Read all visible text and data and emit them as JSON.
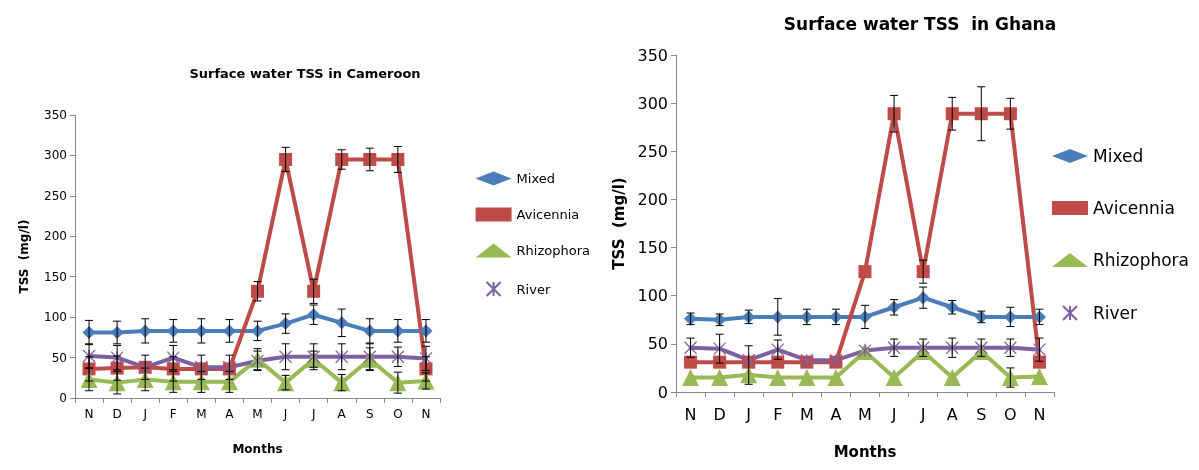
{
  "chart_data": [
    {
      "type": "line",
      "title": "Surface water TSS in Cameroon",
      "xlabel": "Months",
      "ylabel": "TSS  (mg/l)",
      "categories": [
        "N",
        "D",
        "J",
        "F",
        "M",
        "A",
        "M",
        "J",
        "J",
        "A",
        "S",
        "O",
        "N"
      ],
      "ylim": [
        0,
        350
      ],
      "yticks": [
        0,
        50,
        100,
        150,
        200,
        250,
        300,
        350
      ],
      "legend": "right",
      "grid": false,
      "line_style": "solid",
      "series": [
        {
          "name": "Mixed",
          "color": "#4a7ebb",
          "marker": "diamond",
          "values": [
            81,
            81,
            83,
            83,
            83,
            83,
            83,
            92,
            103,
            93,
            83,
            83,
            83
          ],
          "errors": [
            15,
            14,
            15,
            14,
            15,
            14,
            12,
            12,
            12,
            17,
            15,
            14,
            14
          ]
        },
        {
          "name": "Avicennia",
          "color": "#be4b48",
          "marker": "square",
          "values": [
            36,
            37,
            38,
            36,
            36,
            36,
            132,
            295,
            132,
            295,
            295,
            295,
            36
          ],
          "errors": [
            15,
            15,
            null,
            15,
            null,
            null,
            12,
            15,
            15,
            12,
            14,
            16,
            15
          ]
        },
        {
          "name": "Rhizophora",
          "color": "#98b954",
          "marker": "triangle",
          "values": [
            23,
            19,
            23,
            20,
            20,
            20,
            48,
            19,
            48,
            19,
            48,
            19,
            21
          ],
          "errors": [
            14,
            14,
            14,
            13,
            13,
            13,
            13,
            9,
            10,
            10,
            14,
            13,
            10
          ]
        },
        {
          "name": "River",
          "color": "#7d60a0",
          "marker": "cross",
          "values": [
            52,
            50,
            38,
            50,
            38,
            38,
            46,
            51,
            51,
            51,
            51,
            51,
            49
          ],
          "errors": [
            15,
            15,
            15,
            15,
            15,
            15,
            12,
            16,
            16,
            16,
            16,
            12,
            15
          ]
        }
      ]
    },
    {
      "type": "line",
      "title": "Surface water TSS  in Ghana",
      "xlabel": "Months",
      "ylabel": "TSS  (mg/l)",
      "categories": [
        "N",
        "D",
        "J",
        "F",
        "M",
        "A",
        "M",
        "J",
        "J",
        "A",
        "S",
        "O",
        "N"
      ],
      "ylim": [
        0,
        350
      ],
      "yticks": [
        0,
        50,
        100,
        150,
        200,
        250,
        300,
        350
      ],
      "legend": "right",
      "grid": false,
      "line_style": "solid",
      "series": [
        {
          "name": "Mixed",
          "color": "#4a7ebb",
          "marker": "diamond",
          "values": [
            76,
            75,
            78,
            78,
            78,
            78,
            78,
            88,
            98,
            88,
            78,
            78,
            78
          ],
          "errors": [
            6,
            6,
            7,
            19,
            8,
            8,
            12,
            8,
            11,
            7,
            6,
            10,
            8
          ]
        },
        {
          "name": "Avicennia",
          "color": "#be4b48",
          "marker": "square",
          "values": [
            31,
            31,
            31,
            31,
            31,
            31,
            125,
            289,
            125,
            289,
            289,
            289,
            31
          ],
          "errors": [
            null,
            null,
            null,
            null,
            null,
            null,
            null,
            19,
            12,
            17,
            28,
            16,
            null
          ]
        },
        {
          "name": "Rhizophora",
          "color": "#98b954",
          "marker": "triangle",
          "values": [
            15,
            15,
            18,
            15,
            15,
            15,
            42,
            15,
            42,
            15,
            42,
            15,
            16
          ],
          "errors": [
            null,
            null,
            null,
            null,
            null,
            null,
            null,
            null,
            null,
            null,
            null,
            10,
            null
          ]
        },
        {
          "name": "River",
          "color": "#7d60a0",
          "marker": "cross",
          "values": [
            46,
            45,
            33,
            44,
            33,
            33,
            43,
            46,
            46,
            46,
            46,
            46,
            44
          ],
          "errors": [
            10,
            15,
            [
              8,
              48
            ],
            10,
            null,
            null,
            null,
            9,
            9,
            10,
            9,
            9,
            12
          ]
        }
      ]
    }
  ]
}
